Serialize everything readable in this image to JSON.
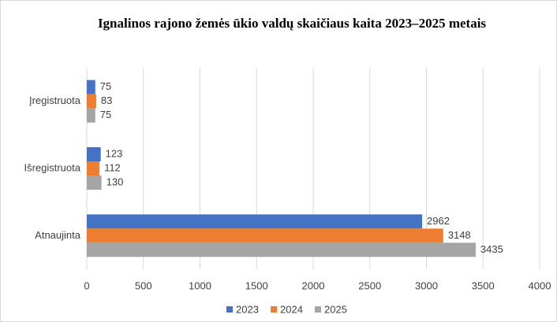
{
  "chart_data": {
    "type": "bar",
    "orientation": "horizontal",
    "title": "Ignalinos rajono žemės ūkio valdų skaičiaus kaita 2023–2025 metais",
    "categories": [
      "Įregistruota",
      "Išregistruota",
      "Atnaujinta"
    ],
    "series": [
      {
        "name": "2023",
        "color": "#4472c4",
        "values": [
          75,
          123,
          2962
        ]
      },
      {
        "name": "2024",
        "color": "#ed7d31",
        "values": [
          83,
          112,
          3148
        ]
      },
      {
        "name": "2025",
        "color": "#a5a5a5",
        "values": [
          75,
          130,
          3435
        ]
      }
    ],
    "xlim": [
      0,
      4000
    ],
    "xticks": [
      0,
      500,
      1000,
      1500,
      2000,
      2500,
      3000,
      3500,
      4000
    ],
    "grid": true,
    "legend": "bottom"
  }
}
